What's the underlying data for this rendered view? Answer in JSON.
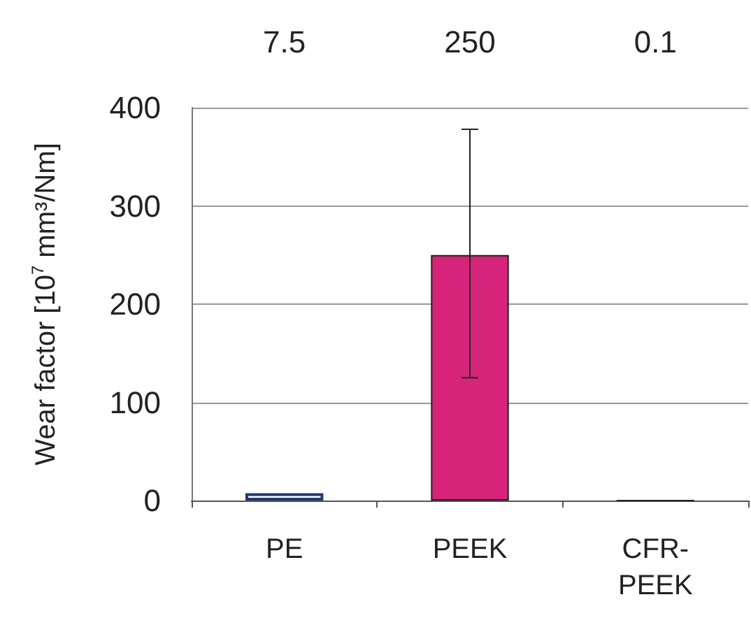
{
  "chart_data": {
    "type": "bar",
    "ylabel": "Wear factor [10$^{7}$ mm³/Nm]",
    "categories": [
      "PE",
      "PEEK",
      "CFR-PEEK"
    ],
    "values": [
      7.5,
      250,
      0.1
    ],
    "colors": [
      "#ffffff",
      "#d6247a",
      "#222222"
    ],
    "errors": [
      null,
      [
        125,
        378
      ],
      null
    ],
    "data_labels": true,
    "ylim": [
      0,
      400
    ],
    "yticks": [
      0,
      100,
      200,
      300,
      400
    ],
    "grid": "y"
  }
}
